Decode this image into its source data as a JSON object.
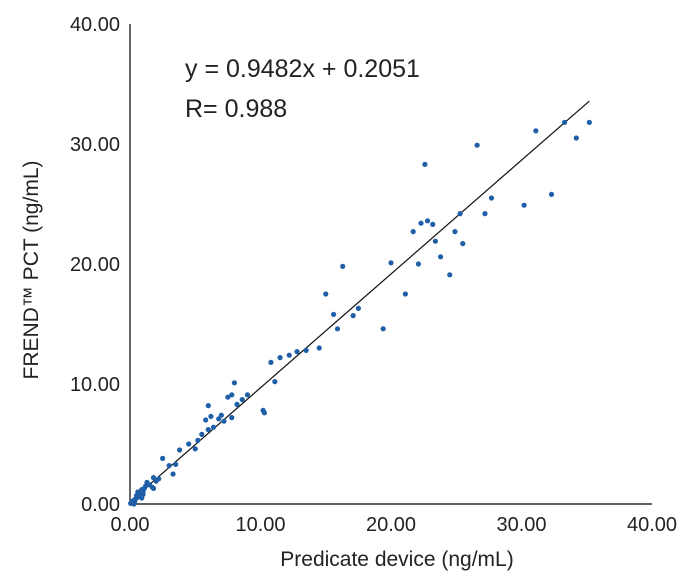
{
  "chart_data": {
    "type": "scatter",
    "xlabel": "Predicate device (ng/mL)",
    "ylabel": "FREND™ PCT (ng/mL)",
    "xlim": [
      0,
      40
    ],
    "ylim": [
      0,
      40
    ],
    "x_ticks": [
      "0.00",
      "10.00",
      "20.00",
      "30.00",
      "40.00"
    ],
    "y_ticks": [
      "0.00",
      "10.00",
      "20.00",
      "30.00",
      "40.00"
    ],
    "grid": false,
    "annotations": [
      "y = 0.9482x + 0.2051",
      "R= 0.988"
    ],
    "fit_line": {
      "slope": 0.9482,
      "intercept": 0.2051,
      "x_range": [
        0,
        35.2
      ]
    },
    "point_color": "#1f5fa8",
    "x": [
      0.05,
      0.1,
      0.15,
      0.2,
      0.3,
      0.35,
      0.4,
      0.5,
      0.5,
      0.6,
      0.7,
      0.8,
      0.9,
      1.0,
      1.1,
      1.2,
      0.6,
      0.9,
      1.3,
      1.5,
      1.7,
      1.8,
      2.0,
      2.2,
      2.5,
      1.0,
      3.0,
      3.3,
      3.8,
      4.5,
      5.0,
      5.2,
      5.5,
      5.8,
      6.0,
      6.2,
      6.4,
      6.8,
      7.0,
      7.2,
      7.5,
      7.8,
      8.0,
      8.2,
      8.6,
      9.0,
      10.2,
      10.3,
      10.8,
      11.1,
      11.5,
      12.2,
      12.8,
      13.5,
      14.5,
      15.0,
      15.6,
      15.9,
      16.3,
      17.1,
      17.5,
      19.4,
      20.0,
      21.1,
      21.7,
      22.1,
      22.3,
      22.8,
      23.2,
      23.4,
      23.8,
      24.5,
      24.9,
      25.3,
      25.5,
      26.6,
      27.2,
      27.7,
      30.2,
      31.1,
      32.3,
      33.3,
      34.2,
      35.2,
      1.8,
      0.3,
      3.5,
      6.0,
      7.8,
      22.6
    ],
    "y": [
      0.05,
      0.1,
      0.2,
      0.15,
      0.3,
      0.2,
      0.4,
      0.5,
      0.7,
      0.6,
      0.9,
      0.8,
      1.2,
      1.0,
      1.3,
      1.5,
      1.0,
      0.5,
      1.8,
      1.6,
      1.4,
      2.2,
      1.9,
      2.1,
      3.8,
      0.8,
      3.2,
      2.5,
      4.5,
      5.0,
      4.6,
      5.3,
      5.8,
      7.0,
      8.2,
      7.3,
      6.4,
      7.1,
      7.4,
      6.9,
      8.9,
      9.1,
      10.1,
      8.3,
      8.7,
      9.1,
      7.8,
      7.6,
      11.8,
      10.2,
      12.2,
      12.4,
      12.7,
      12.8,
      13.0,
      17.5,
      15.8,
      14.6,
      19.8,
      15.7,
      16.3,
      14.6,
      20.1,
      17.5,
      22.7,
      20.0,
      23.4,
      23.6,
      23.3,
      21.9,
      20.6,
      19.1,
      22.7,
      24.2,
      21.7,
      29.9,
      24.2,
      25.5,
      24.9,
      31.1,
      25.8,
      31.8,
      30.5,
      31.8,
      1.3,
      0.0,
      3.3,
      6.2,
      7.2,
      28.3
    ]
  }
}
